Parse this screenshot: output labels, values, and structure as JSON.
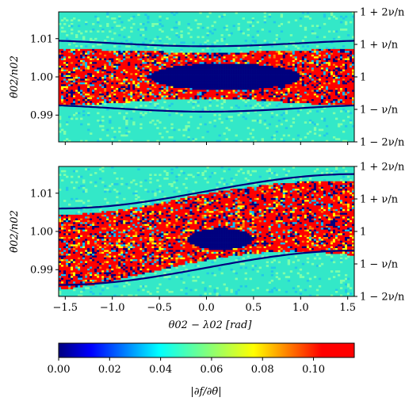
{
  "chart_data": [
    {
      "type": "heatmap",
      "panel": "top",
      "title": "",
      "xlabel": "",
      "ylabel": "θ̇02/n02",
      "xlim": [
        -1.57,
        1.57
      ],
      "ylim": [
        0.983,
        1.017
      ],
      "y_ticks": [
        0.99,
        1.0,
        1.01
      ],
      "y_tick_labels": [
        "0.99",
        "1.00",
        "1.01"
      ],
      "y2_ticks": [
        0.983,
        0.9915,
        1.0,
        1.0085,
        1.017
      ],
      "y2_tick_labels": [
        "1 − 2ν/n",
        "1 − ν/n",
        "1",
        "1 + ν/n",
        "1 + 2ν/n"
      ],
      "x_ticks": [
        -1.5,
        -1.0,
        -0.5,
        0.0,
        0.5,
        1.0,
        1.5
      ],
      "x_tick_labels_shown": false,
      "features": {
        "chaotic_band": [
          0.9915,
          1.0085
        ],
        "island_center": [
          0.2,
          1.0
        ],
        "island_half_width": 0.8,
        "island_half_height": 0.0035,
        "background_value": 0.04
      },
      "colormap": "jet"
    },
    {
      "type": "heatmap",
      "panel": "bottom",
      "title": "",
      "xlabel": "θ02 − λ02 [rad]",
      "ylabel": "θ̇02/n02",
      "xlim": [
        -1.57,
        1.57
      ],
      "ylim": [
        0.983,
        1.017
      ],
      "y_ticks": [
        0.99,
        1.0,
        1.01
      ],
      "y_tick_labels": [
        "0.99",
        "1.00",
        "1.01"
      ],
      "y2_ticks": [
        0.983,
        0.9915,
        1.0,
        1.0085,
        1.017
      ],
      "y2_tick_labels": [
        "1 − 2ν/n",
        "1 − ν/n",
        "1",
        "1 + ν/n",
        "1 + 2ν/n"
      ],
      "x_ticks": [
        -1.5,
        -1.0,
        -0.5,
        0.0,
        0.5,
        1.0,
        1.5
      ],
      "x_tick_labels": [
        "−1.5",
        "−1.0",
        "−0.5",
        "0.0",
        "0.5",
        "1.0",
        "1.5"
      ],
      "features": {
        "island_center": [
          0.15,
          0.998
        ],
        "island_half_width": 0.35,
        "island_half_height": 0.0028,
        "background_value": 0.04
      },
      "colormap": "jet"
    }
  ],
  "colorbar": {
    "label": "|∂f/∂θ̇|",
    "min": 0.0,
    "max": 0.116,
    "ticks": [
      0.0,
      0.02,
      0.04,
      0.06,
      0.08,
      0.1
    ],
    "tick_labels": [
      "0.00",
      "0.02",
      "0.04",
      "0.06",
      "0.08",
      "0.10"
    ]
  },
  "colors": {
    "jet": [
      "#00007f",
      "#0000ff",
      "#007fff",
      "#00ffff",
      "#7fff7f",
      "#ffff00",
      "#ff7f00",
      "#ff0000",
      "#7f0000"
    ]
  }
}
